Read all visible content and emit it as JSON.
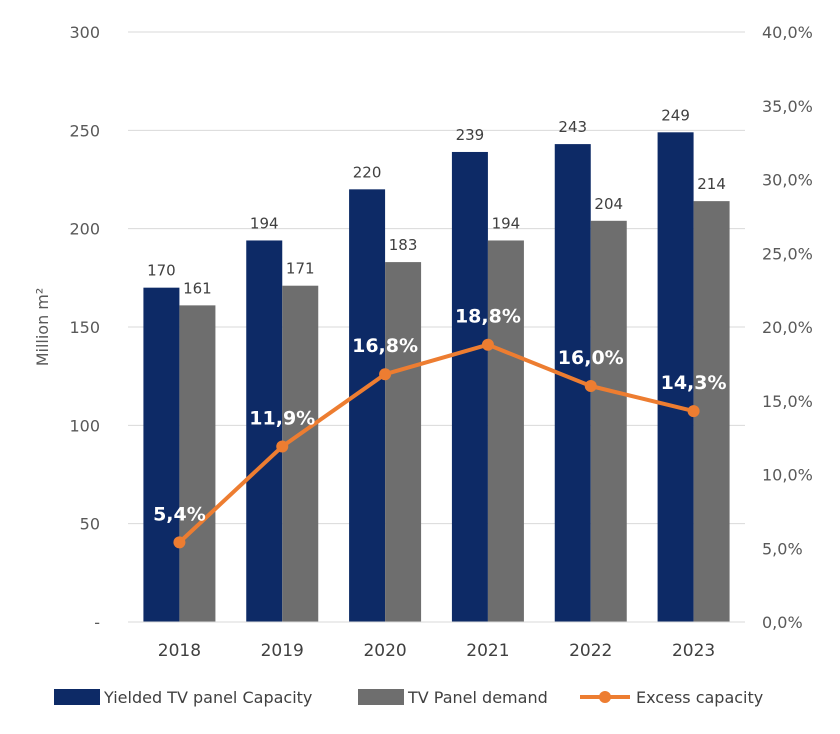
{
  "chart_data": {
    "type": "bar",
    "categories": [
      "2018",
      "2019",
      "2020",
      "2021",
      "2022",
      "2023"
    ],
    "series": [
      {
        "name": "Yielded TV panel Capacity",
        "type": "bar",
        "axis": "left",
        "color": "#0d2a66",
        "values": [
          170,
          194,
          220,
          239,
          243,
          249
        ],
        "labels": [
          "170",
          "194",
          "220",
          "239",
          "243",
          "249"
        ]
      },
      {
        "name": "TV Panel demand",
        "type": "bar",
        "axis": "left",
        "color": "#6e6e6e",
        "values": [
          161,
          171,
          183,
          194,
          204,
          214
        ],
        "labels": [
          "161",
          "171",
          "183",
          "194",
          "204",
          "214"
        ]
      },
      {
        "name": "Excess capacity",
        "type": "line",
        "axis": "right",
        "color": "#ed7d31",
        "values": [
          5.4,
          11.9,
          16.8,
          18.8,
          16.0,
          14.3
        ],
        "labels": [
          "5,4%",
          "11,9%",
          "16,8%",
          "18,8%",
          "16,0%",
          "14,3%"
        ]
      }
    ],
    "ylabel": "Million m²",
    "ylim": [
      0,
      300
    ],
    "yticks": [
      0,
      50,
      100,
      150,
      200,
      250,
      300
    ],
    "ytick_labels": [
      "-",
      "50",
      "100",
      "150",
      "200",
      "250",
      "300"
    ],
    "y2lim": [
      0,
      40
    ],
    "y2ticks": [
      0,
      5,
      10,
      15,
      20,
      25,
      30,
      35,
      40
    ],
    "y2tick_labels": [
      "0,0%",
      "5,0%",
      "10,0%",
      "15,0%",
      "20,0%",
      "25,0%",
      "30,0%",
      "35,0%",
      "40,0%"
    ],
    "grid": true,
    "legend_position": "bottom"
  }
}
